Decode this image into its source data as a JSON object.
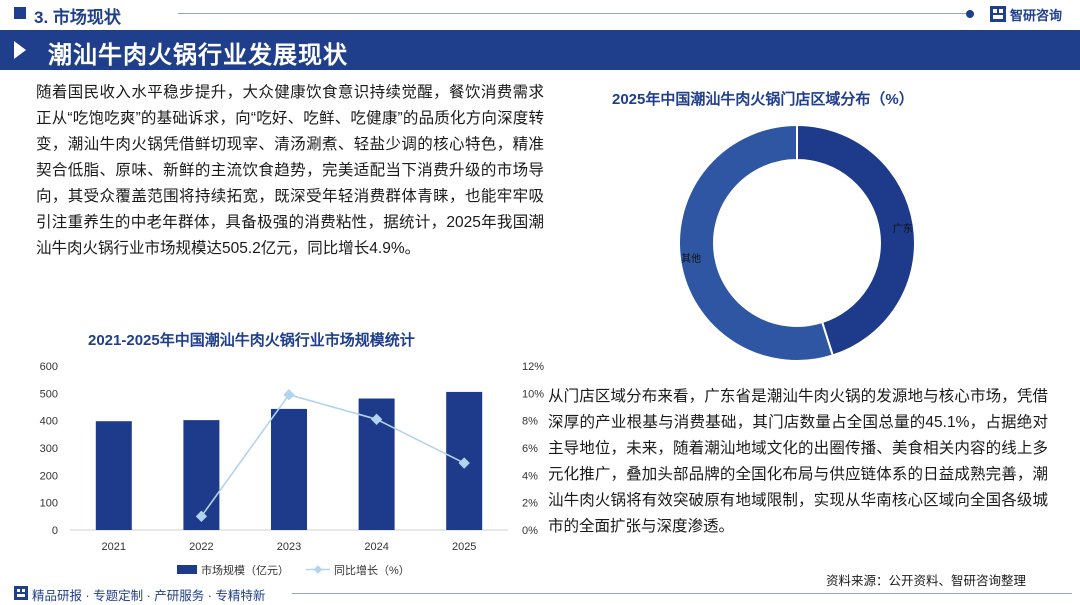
{
  "header": {
    "section_title": "3. 市场现状",
    "brand": "智研咨询",
    "banner_title": "潮汕牛肉火锅行业发展现状"
  },
  "body": {
    "paragraph1": "随着国民收入水平稳步提升，大众健康饮食意识持续觉醒，餐饮消费需求正从“吃饱吃爽”的基础诉求，向“吃好、吃鲜、吃健康”的品质化方向深度转变，潮汕牛肉火锅凭借鲜切现宰、清汤涮煮、轻盐少调的核心特色，精准契合低脂、原味、新鲜的主流饮食趋势，完美适配当下消费升级的市场导向，其受众覆盖范围将持续拓宽，既深受年轻消费群体青睐，也能牢牢吸引注重养生的中老年群体，具备极强的消费粘性，据统计，2025年我国潮汕牛肉火锅行业市场规模达505.2亿元，同比增长4.9%。",
    "paragraph2": "从门店区域分布来看，广东省是潮汕牛肉火锅的发源地与核心市场，凭借深厚的产业根基与消费基础，其门店数量占全国总量的45.1%，占据绝对主导地位，未来，随着潮汕地域文化的出圈传播、美食相关内容的线上多元化推广，叠加头部品牌的全国化布局与供应链体系的日益成熟完善，潮汕牛肉火锅将有效突破原有地域限制，实现从华南核心区域向全国各级城市的全面扩张与深度渗透。"
  },
  "source": "资料来源：公开资料、智研咨询整理",
  "footer": {
    "text": "精品研报 · 专题定制 · 产研服务 · 专精特新"
  },
  "colors": {
    "primary": "#1f3e8c",
    "bar": "#1e3a8a",
    "line": "#b3d4ee",
    "pie_other": "#2f56a3"
  },
  "chart_data": [
    {
      "type": "bar",
      "title": "2021-2025年中国潮汕牛肉火锅行业市场规模统计",
      "categories": [
        "2021",
        "2022",
        "2023",
        "2024",
        "2025"
      ],
      "series": [
        {
          "name": "市场规模（亿元）",
          "type": "bar",
          "axis": "left",
          "values": [
            398,
            402,
            443,
            481,
            505.2
          ]
        },
        {
          "name": "同比增长（%）",
          "type": "line",
          "axis": "right",
          "values": [
            1.0,
            9.9,
            8.1,
            4.9
          ],
          "x": [
            "2022",
            "2023",
            "2024",
            "2025"
          ]
        }
      ],
      "y_left": {
        "min": 0,
        "max": 600,
        "step": 100,
        "ticks": [
          "0",
          "100",
          "200",
          "300",
          "400",
          "500",
          "600"
        ]
      },
      "y_right": {
        "min": 0,
        "max": 12,
        "step": 2,
        "ticks": [
          "0%",
          "2%",
          "4%",
          "6%",
          "8%",
          "10%",
          "12%"
        ]
      },
      "legend_position": "bottom"
    },
    {
      "type": "pie",
      "title": "2025年中国潮汕牛肉火锅门店区域分布（%）",
      "slices": [
        {
          "label": "广东",
          "value": 45.1
        },
        {
          "label": "其他",
          "value": 54.9
        }
      ],
      "donut": true
    }
  ]
}
